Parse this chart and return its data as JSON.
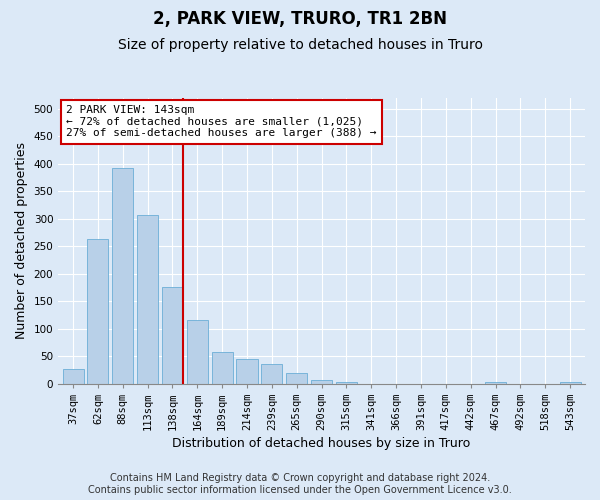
{
  "title": "2, PARK VIEW, TRURO, TR1 2BN",
  "subtitle": "Size of property relative to detached houses in Truro",
  "xlabel": "Distribution of detached houses by size in Truro",
  "ylabel": "Number of detached properties",
  "categories": [
    "37sqm",
    "62sqm",
    "88sqm",
    "113sqm",
    "138sqm",
    "164sqm",
    "189sqm",
    "214sqm",
    "239sqm",
    "265sqm",
    "290sqm",
    "315sqm",
    "341sqm",
    "366sqm",
    "391sqm",
    "417sqm",
    "442sqm",
    "467sqm",
    "492sqm",
    "518sqm",
    "543sqm"
  ],
  "values": [
    27,
    263,
    393,
    307,
    175,
    115,
    57,
    45,
    35,
    20,
    7,
    2,
    0,
    0,
    0,
    0,
    0,
    2,
    0,
    0,
    2
  ],
  "bar_color": "#b8d0e8",
  "bar_edge_color": "#6baed6",
  "vline_x_index": 4.42,
  "vline_color": "#cc0000",
  "annotation_line1": "2 PARK VIEW: 143sqm",
  "annotation_line2": "← 72% of detached houses are smaller (1,025)",
  "annotation_line3": "27% of semi-detached houses are larger (388) →",
  "annotation_box_color": "#ffffff",
  "annotation_box_edge": "#cc0000",
  "ylim": [
    0,
    520
  ],
  "yticks": [
    0,
    50,
    100,
    150,
    200,
    250,
    300,
    350,
    400,
    450,
    500
  ],
  "footnote": "Contains HM Land Registry data © Crown copyright and database right 2024.\nContains public sector information licensed under the Open Government Licence v3.0.",
  "background_color": "#dce9f7",
  "grid_color": "#ffffff",
  "title_fontsize": 12,
  "subtitle_fontsize": 10,
  "axis_label_fontsize": 9,
  "tick_fontsize": 7.5,
  "footnote_fontsize": 7
}
